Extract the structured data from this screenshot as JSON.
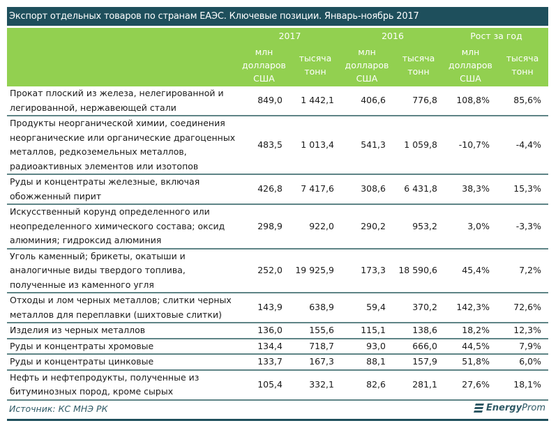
{
  "title": "Экспорт отдельных товаров по странам ЕАЭС. Ключевые позиции. Январь-ноябрь 2017",
  "header": {
    "years": [
      "2017",
      "2016",
      "Рост за год"
    ],
    "units": [
      "млн долларов США",
      "тысяча тонн",
      "млн долларов США",
      "тысяча тонн",
      "млн долларов США",
      "тысяча тонн"
    ]
  },
  "rows": [
    {
      "label": "Прокат плоский из железа, нелегированной и легированной, нержавеющей стали",
      "values": [
        "849,0",
        "1 442,1",
        "406,6",
        "776,8",
        "108,8%",
        "85,6%"
      ]
    },
    {
      "label": "Продукты неорганической химии, соединения неорганические или органические драгоценных металлов, редкоземельных металлов, радиоактивных элементов или изотопов",
      "values": [
        "483,5",
        "1 013,4",
        "541,3",
        "1 059,8",
        "-10,7%",
        "-4,4%"
      ]
    },
    {
      "label": "Руды и концентраты железные, включая обожженный пирит",
      "values": [
        "426,8",
        "7 417,6",
        "308,6",
        "6 431,8",
        "38,3%",
        "15,3%"
      ]
    },
    {
      "label": "Искусственный корунд определенного или неопределенного химического состава; оксид алюминия; гидроксид алюминия",
      "values": [
        "298,9",
        "922,0",
        "290,2",
        "953,2",
        "3,0%",
        "-3,3%"
      ]
    },
    {
      "label": "Уголь каменный; брикеты, окатыши и аналогичные виды твердого топлива, полученные из каменного угля",
      "values": [
        "252,0",
        "19 925,9",
        "173,3",
        "18 590,6",
        "45,4%",
        "7,2%"
      ]
    },
    {
      "label": "Отходы и лом черных металлов; слитки черных металлов для переплавки (шихтовые слитки)",
      "values": [
        "143,9",
        "638,9",
        "59,4",
        "370,2",
        "142,3%",
        "72,6%"
      ]
    },
    {
      "label": "Изделия из черных металлов",
      "values": [
        "136,0",
        "155,6",
        "115,1",
        "138,6",
        "18,2%",
        "12,3%"
      ]
    },
    {
      "label": "Руды и концентраты хромовые",
      "values": [
        "134,4",
        "718,7",
        "93,0",
        "666,0",
        "44,5%",
        "7,9%"
      ]
    },
    {
      "label": "Руды и концентраты цинковые",
      "values": [
        "133,7",
        "167,3",
        "88,1",
        "157,9",
        "51,8%",
        "6,0%"
      ]
    },
    {
      "label": "Нефть и нефтепродукты, полученные из битуминозных пород, кроме сырых",
      "values": [
        "105,4",
        "332,1",
        "82,6",
        "281,1",
        "27,6%",
        "18,1%"
      ]
    }
  ],
  "footer": {
    "source": "Источник: КС МНЭ РК",
    "logo": {
      "bold": "Energy",
      "regular": "Prom"
    }
  },
  "colors": {
    "title_bg": "#1e4f5c",
    "header_bg": "#92d050",
    "row_border": "#5e8486"
  }
}
